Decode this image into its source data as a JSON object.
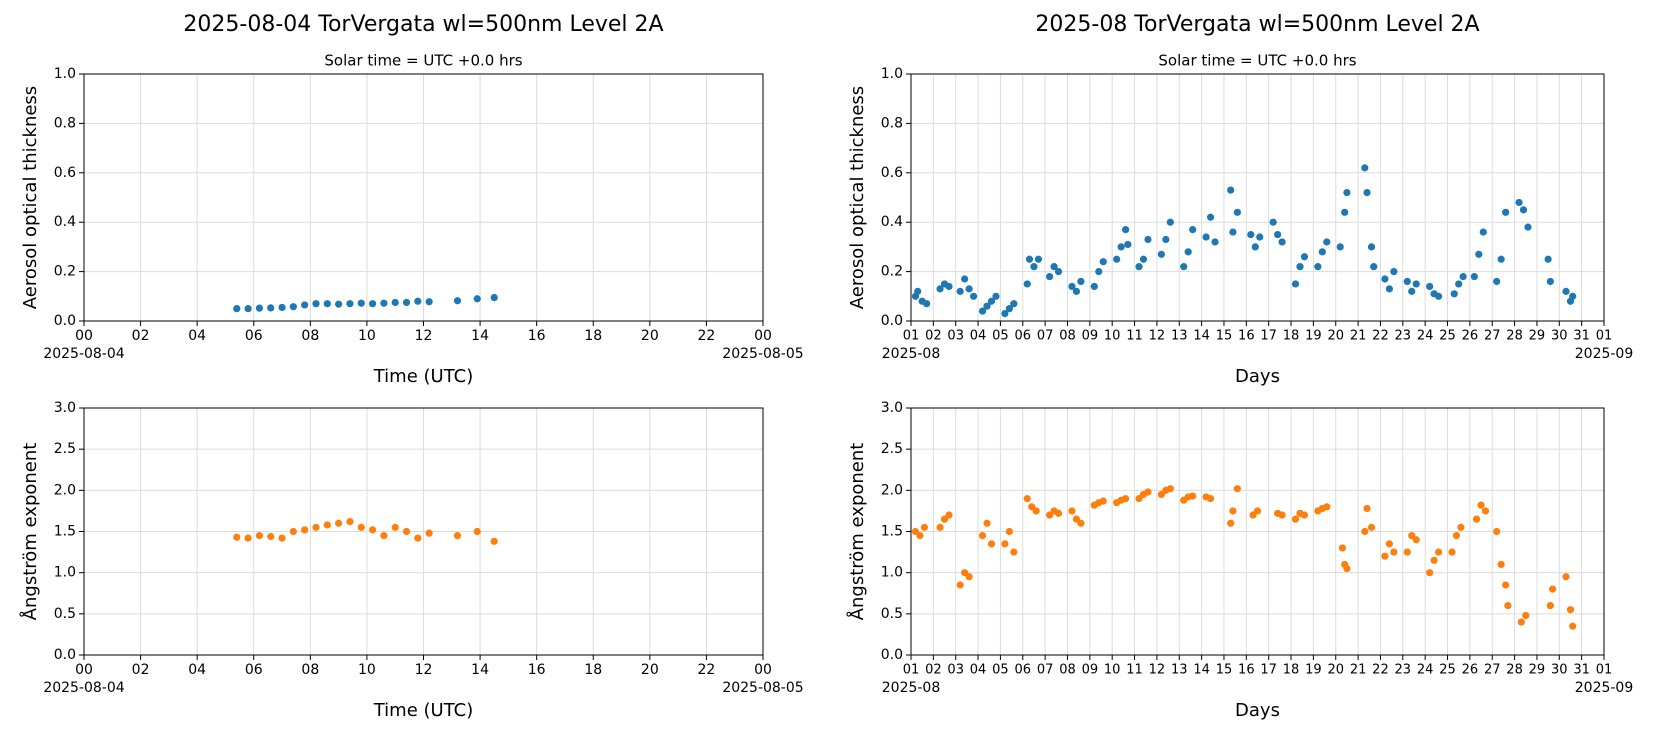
{
  "chart_data": [
    {
      "type": "scatter",
      "title": "2025-08-04  TorVergata  wl=500nm  Level 2A",
      "subtitle": "Solar time = UTC +0.0 hrs",
      "xlabel": "Time (UTC)",
      "ylabel": "Aerosol optical thickness",
      "color": "#1f77b4",
      "grid": true,
      "x": [
        5.4,
        5.8,
        6.2,
        6.6,
        7.0,
        7.4,
        7.8,
        8.2,
        8.6,
        9.0,
        9.4,
        9.8,
        10.2,
        10.6,
        11.0,
        11.4,
        11.8,
        12.2,
        13.2,
        13.9,
        14.5
      ],
      "values": [
        0.05,
        0.05,
        0.052,
        0.053,
        0.055,
        0.058,
        0.065,
        0.07,
        0.07,
        0.068,
        0.07,
        0.072,
        0.07,
        0.072,
        0.075,
        0.075,
        0.08,
        0.078,
        0.082,
        0.09,
        0.095
      ],
      "xlim": [
        0,
        24
      ],
      "xticks": [
        {
          "value": 0,
          "label": "00"
        },
        {
          "value": 2,
          "label": "02"
        },
        {
          "value": 4,
          "label": "04"
        },
        {
          "value": 6,
          "label": "06"
        },
        {
          "value": 8,
          "label": "08"
        },
        10,
        12,
        14,
        16,
        18,
        20,
        22,
        {
          "value": 24,
          "label": "00"
        }
      ],
      "xdate_labels": [
        {
          "value": 0,
          "label": "2025-08-04"
        },
        {
          "value": 24,
          "label": "2025-08-05"
        }
      ],
      "ylim": [
        0,
        1
      ],
      "yticks": [
        {
          "value": 0,
          "label": "0.0"
        },
        0.2,
        0.4,
        0.6,
        0.8,
        {
          "value": 1,
          "label": "1.0"
        }
      ]
    },
    {
      "type": "scatter",
      "title": "2025-08  TorVergata  wl=500nm  Level 2A",
      "subtitle": "Solar time = UTC +0.0 hrs",
      "xlabel": "Days",
      "ylabel": "Aerosol optical thickness",
      "color": "#1f77b4",
      "grid": true,
      "x": [
        1.2,
        1.3,
        1.5,
        1.7,
        2.3,
        2.5,
        2.7,
        3.2,
        3.4,
        3.6,
        3.8,
        4.2,
        4.4,
        4.6,
        4.8,
        5.2,
        5.4,
        5.6,
        6.2,
        6.3,
        6.5,
        6.7,
        7.2,
        7.4,
        7.6,
        8.2,
        8.4,
        8.6,
        9.2,
        9.4,
        9.6,
        10.2,
        10.4,
        10.6,
        10.7,
        11.2,
        11.4,
        11.6,
        12.2,
        12.4,
        12.6,
        13.2,
        13.4,
        13.6,
        14.2,
        14.4,
        14.6,
        15.3,
        15.4,
        15.6,
        16.2,
        16.4,
        16.6,
        17.2,
        17.4,
        17.6,
        18.2,
        18.4,
        18.6,
        19.2,
        19.4,
        19.6,
        20.2,
        20.4,
        20.5,
        21.3,
        21.4,
        21.6,
        21.7,
        22.2,
        22.4,
        22.6,
        23.2,
        23.4,
        23.6,
        24.2,
        24.4,
        24.6,
        25.3,
        25.5,
        25.7,
        26.2,
        26.4,
        26.6,
        27.2,
        27.4,
        27.6,
        28.2,
        28.4,
        28.6,
        29.5,
        29.6,
        30.3,
        30.5,
        30.6
      ],
      "values": [
        0.1,
        0.12,
        0.08,
        0.07,
        0.13,
        0.15,
        0.14,
        0.12,
        0.17,
        0.13,
        0.1,
        0.04,
        0.06,
        0.08,
        0.1,
        0.03,
        0.05,
        0.07,
        0.15,
        0.25,
        0.22,
        0.25,
        0.18,
        0.22,
        0.2,
        0.14,
        0.12,
        0.16,
        0.14,
        0.2,
        0.24,
        0.25,
        0.3,
        0.37,
        0.31,
        0.22,
        0.25,
        0.33,
        0.27,
        0.33,
        0.4,
        0.22,
        0.28,
        0.37,
        0.34,
        0.42,
        0.32,
        0.53,
        0.36,
        0.44,
        0.35,
        0.3,
        0.34,
        0.4,
        0.35,
        0.32,
        0.15,
        0.22,
        0.26,
        0.22,
        0.28,
        0.32,
        0.3,
        0.44,
        0.52,
        0.62,
        0.52,
        0.3,
        0.22,
        0.17,
        0.13,
        0.2,
        0.16,
        0.12,
        0.15,
        0.14,
        0.11,
        0.1,
        0.11,
        0.15,
        0.18,
        0.18,
        0.27,
        0.36,
        0.16,
        0.25,
        0.44,
        0.48,
        0.45,
        0.38,
        0.25,
        0.16,
        0.12,
        0.08,
        0.1
      ],
      "xlim": [
        1,
        32
      ],
      "xticks": [
        {
          "value": 1,
          "label": "01"
        },
        {
          "value": 2,
          "label": "02"
        },
        {
          "value": 3,
          "label": "03"
        },
        {
          "value": 4,
          "label": "04"
        },
        {
          "value": 5,
          "label": "05"
        },
        {
          "value": 6,
          "label": "06"
        },
        {
          "value": 7,
          "label": "07"
        },
        {
          "value": 8,
          "label": "08"
        },
        {
          "value": 9,
          "label": "09"
        },
        10,
        11,
        12,
        13,
        14,
        15,
        16,
        17,
        18,
        19,
        20,
        21,
        22,
        23,
        24,
        25,
        26,
        27,
        28,
        29,
        30,
        31,
        {
          "value": 32,
          "label": "01"
        }
      ],
      "xdate_labels": [
        {
          "value": 1,
          "label": "2025-08"
        },
        {
          "value": 32,
          "label": "2025-09"
        }
      ],
      "ylim": [
        0,
        1
      ],
      "yticks": [
        {
          "value": 0,
          "label": "0.0"
        },
        0.2,
        0.4,
        0.6,
        0.8,
        {
          "value": 1,
          "label": "1.0"
        }
      ]
    },
    {
      "type": "scatter",
      "xlabel": "Time (UTC)",
      "ylabel": "Ångström exponent",
      "color": "#ff7f0e",
      "grid": true,
      "x": [
        5.4,
        5.8,
        6.2,
        6.6,
        7.0,
        7.4,
        7.8,
        8.2,
        8.6,
        9.0,
        9.4,
        9.8,
        10.2,
        10.6,
        11.0,
        11.4,
        11.8,
        12.2,
        13.2,
        13.9,
        14.5
      ],
      "values": [
        1.43,
        1.42,
        1.45,
        1.44,
        1.42,
        1.5,
        1.52,
        1.55,
        1.58,
        1.6,
        1.62,
        1.55,
        1.52,
        1.45,
        1.55,
        1.5,
        1.42,
        1.48,
        1.45,
        1.5,
        1.38
      ],
      "xlim": [
        0,
        24
      ],
      "xticks": [
        {
          "value": 0,
          "label": "00"
        },
        {
          "value": 2,
          "label": "02"
        },
        {
          "value": 4,
          "label": "04"
        },
        {
          "value": 6,
          "label": "06"
        },
        {
          "value": 8,
          "label": "08"
        },
        10,
        12,
        14,
        16,
        18,
        20,
        22,
        {
          "value": 24,
          "label": "00"
        }
      ],
      "xdate_labels": [
        {
          "value": 0,
          "label": "2025-08-04"
        },
        {
          "value": 24,
          "label": "2025-08-05"
        }
      ],
      "ylim": [
        0,
        3
      ],
      "yticks": [
        {
          "value": 0,
          "label": "0.0"
        },
        0.5,
        {
          "value": 1,
          "label": "1.0"
        },
        1.5,
        {
          "value": 2,
          "label": "2.0"
        },
        2.5,
        {
          "value": 3,
          "label": "3.0"
        }
      ]
    },
    {
      "type": "scatter",
      "xlabel": "Days",
      "ylabel": "Ångström exponent",
      "color": "#ff7f0e",
      "grid": true,
      "x": [
        1.2,
        1.4,
        1.6,
        2.3,
        2.5,
        2.7,
        3.2,
        3.4,
        3.6,
        4.2,
        4.4,
        4.6,
        5.2,
        5.4,
        5.6,
        6.2,
        6.4,
        6.6,
        7.2,
        7.4,
        7.6,
        8.2,
        8.4,
        8.6,
        9.2,
        9.4,
        9.6,
        10.2,
        10.4,
        10.6,
        11.2,
        11.4,
        11.6,
        12.2,
        12.4,
        12.6,
        13.2,
        13.4,
        13.6,
        14.2,
        14.4,
        15.3,
        15.4,
        15.6,
        16.3,
        16.5,
        17.4,
        17.6,
        18.2,
        18.4,
        18.6,
        19.2,
        19.4,
        19.6,
        20.3,
        20.4,
        20.5,
        21.3,
        21.4,
        21.6,
        22.2,
        22.4,
        22.6,
        23.2,
        23.4,
        23.6,
        24.2,
        24.4,
        24.6,
        25.2,
        25.4,
        25.6,
        26.3,
        26.5,
        26.7,
        27.2,
        27.4,
        27.6,
        27.7,
        28.3,
        28.5,
        29.6,
        29.7,
        30.3,
        30.5,
        30.6
      ],
      "values": [
        1.5,
        1.45,
        1.55,
        1.55,
        1.65,
        1.7,
        0.85,
        1.0,
        0.95,
        1.45,
        1.6,
        1.35,
        1.35,
        1.5,
        1.25,
        1.9,
        1.8,
        1.75,
        1.7,
        1.75,
        1.72,
        1.75,
        1.65,
        1.6,
        1.82,
        1.85,
        1.87,
        1.85,
        1.88,
        1.9,
        1.9,
        1.95,
        1.98,
        1.95,
        2.0,
        2.02,
        1.88,
        1.92,
        1.93,
        1.92,
        1.9,
        1.6,
        1.75,
        2.02,
        1.7,
        1.75,
        1.72,
        1.7,
        1.65,
        1.72,
        1.7,
        1.75,
        1.78,
        1.8,
        1.3,
        1.1,
        1.05,
        1.5,
        1.78,
        1.55,
        1.2,
        1.35,
        1.25,
        1.25,
        1.45,
        1.4,
        1.0,
        1.15,
        1.25,
        1.25,
        1.45,
        1.55,
        1.65,
        1.82,
        1.75,
        1.5,
        1.1,
        0.85,
        0.6,
        0.4,
        0.48,
        0.6,
        0.8,
        0.95,
        0.55,
        0.35
      ],
      "xlim": [
        1,
        32
      ],
      "xticks": [
        {
          "value": 1,
          "label": "01"
        },
        {
          "value": 2,
          "label": "02"
        },
        {
          "value": 3,
          "label": "03"
        },
        {
          "value": 4,
          "label": "04"
        },
        {
          "value": 5,
          "label": "05"
        },
        {
          "value": 6,
          "label": "06"
        },
        {
          "value": 7,
          "label": "07"
        },
        {
          "value": 8,
          "label": "08"
        },
        {
          "value": 9,
          "label": "09"
        },
        10,
        11,
        12,
        13,
        14,
        15,
        16,
        17,
        18,
        19,
        20,
        21,
        22,
        23,
        24,
        25,
        26,
        27,
        28,
        29,
        30,
        31,
        {
          "value": 32,
          "label": "01"
        }
      ],
      "xdate_labels": [
        {
          "value": 1,
          "label": "2025-08"
        },
        {
          "value": 32,
          "label": "2025-09"
        }
      ],
      "ylim": [
        0,
        3
      ],
      "yticks": [
        {
          "value": 0,
          "label": "0.0"
        },
        0.5,
        {
          "value": 1,
          "label": "1.0"
        },
        1.5,
        {
          "value": 2,
          "label": "2.0"
        },
        2.5,
        {
          "value": 3,
          "label": "3.0"
        }
      ]
    }
  ]
}
